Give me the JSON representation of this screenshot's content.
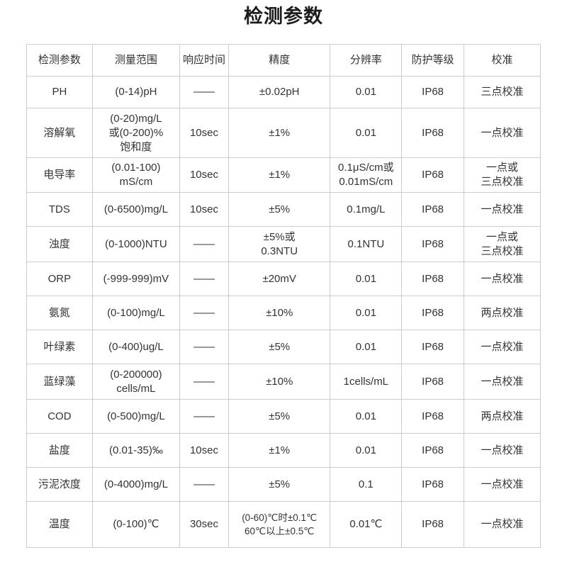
{
  "page_title": "检测参数",
  "colors": {
    "background": "#ffffff",
    "border": "#cccccc",
    "text": "#333333",
    "title": "#1c1c1c"
  },
  "table": {
    "columns": [
      {
        "key": "param",
        "label": "检测参数"
      },
      {
        "key": "range",
        "label": "测量范围"
      },
      {
        "key": "response",
        "label": "响应时间"
      },
      {
        "key": "accuracy",
        "label": "精度"
      },
      {
        "key": "resolution",
        "label": "分辨率"
      },
      {
        "key": "protection",
        "label": "防护等级"
      },
      {
        "key": "calibration",
        "label": "校准"
      }
    ],
    "rows": [
      {
        "param": "PH",
        "range": "(0-14)pH",
        "response": "——",
        "accuracy": "±0.02pH",
        "resolution": "0.01",
        "protection": "IP68",
        "calibration": "三点校准"
      },
      {
        "param": "溶解氧",
        "range": "(0-20)mg/L\n或(0-200)%\n饱和度",
        "response": "10sec",
        "accuracy": "±1%",
        "resolution": "0.01",
        "protection": "IP68",
        "calibration": "一点校准"
      },
      {
        "param": "电导率",
        "range": "(0.01-100)\nmS/cm",
        "response": "10sec",
        "accuracy": "±1%",
        "resolution": "0.1μS/cm或\n0.01mS/cm",
        "protection": "IP68",
        "calibration": "一点或\n三点校准"
      },
      {
        "param": "TDS",
        "range": "(0-6500)mg/L",
        "response": "10sec",
        "accuracy": "±5%",
        "resolution": "0.1mg/L",
        "protection": "IP68",
        "calibration": "一点校准"
      },
      {
        "param": "浊度",
        "range": "(0-1000)NTU",
        "response": "——",
        "accuracy": "±5%或\n0.3NTU",
        "resolution": "0.1NTU",
        "protection": "IP68",
        "calibration": "一点或\n三点校准"
      },
      {
        "param": "ORP",
        "range": "(-999-999)mV",
        "response": "——",
        "accuracy": "±20mV",
        "resolution": "0.01",
        "protection": "IP68",
        "calibration": "一点校准"
      },
      {
        "param": "氨氮",
        "range": "(0-100)mg/L",
        "response": "——",
        "accuracy": "±10%",
        "resolution": "0.01",
        "protection": "IP68",
        "calibration": "两点校准"
      },
      {
        "param": "叶绿素",
        "range": "(0-400)ug/L",
        "response": "——",
        "accuracy": "±5%",
        "resolution": "0.01",
        "protection": "IP68",
        "calibration": "一点校准"
      },
      {
        "param": "蓝绿藻",
        "range": "(0-200000)\ncells/mL",
        "response": "——",
        "accuracy": "±10%",
        "resolution": "1cells/mL",
        "protection": "IP68",
        "calibration": "一点校准"
      },
      {
        "param": "COD",
        "range": "(0-500)mg/L",
        "response": "——",
        "accuracy": "±5%",
        "resolution": "0.01",
        "protection": "IP68",
        "calibration": "两点校准"
      },
      {
        "param": "盐度",
        "range": "(0.01-35)‰",
        "response": "10sec",
        "accuracy": "±1%",
        "resolution": "0.01",
        "protection": "IP68",
        "calibration": "一点校准"
      },
      {
        "param": "污泥浓度",
        "range": "(0-4000)mg/L",
        "response": "——",
        "accuracy": "±5%",
        "resolution": "0.1",
        "protection": "IP68",
        "calibration": "一点校准"
      },
      {
        "param": "温度",
        "range": "(0-100)℃",
        "response": "30sec",
        "accuracy": "(0-60)℃时±0.1℃\n60℃以上±0.5℃",
        "resolution": "0.01℃",
        "protection": "IP68",
        "calibration": "一点校准"
      }
    ]
  }
}
